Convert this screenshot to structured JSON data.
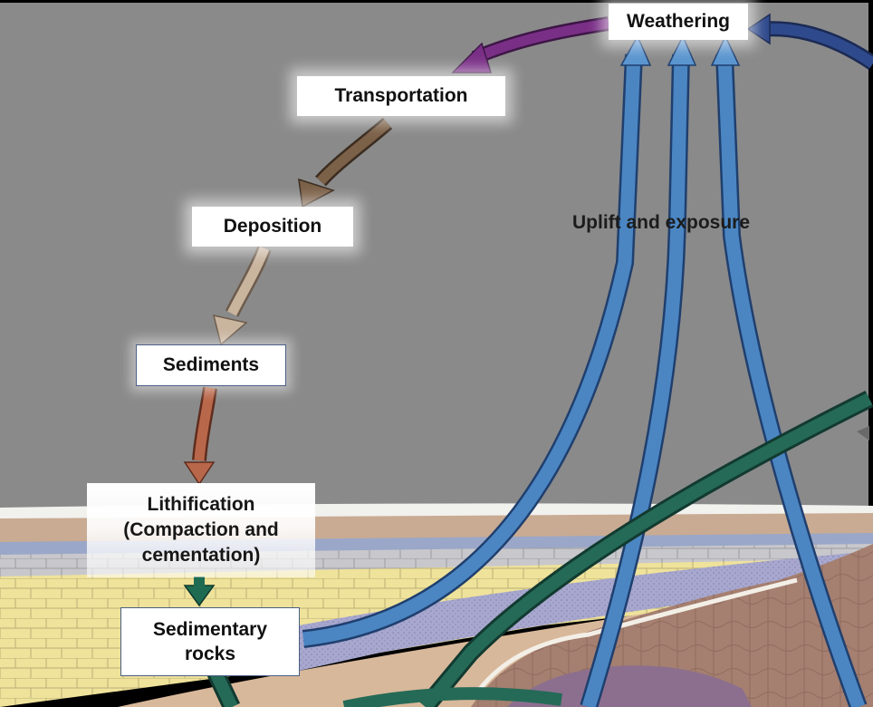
{
  "labels": {
    "weathering": "Weathering",
    "transportation": "Transportation",
    "deposition": "Deposition",
    "sediments": "Sediments",
    "lithification_line1": "Lithification",
    "lithification_line2": "(Compaction and",
    "lithification_line3": "cementation)",
    "sedimentary_line1": "Sedimentary",
    "sedimentary_line2": "rocks",
    "uplift": "Uplift and exposure"
  },
  "colors": {
    "sky": "#8a8a8a",
    "arrow_weathering_to_transport": "#7a2f86",
    "arrow_transport_to_deposition": "#7c6149",
    "arrow_deposition_to_sediments": "#c9b49e",
    "arrow_sediments_to_lithification": "#b9674a",
    "arrow_lithification_to_rocks": "#1f6b52",
    "arrow_uplift": "#3d74b2",
    "arrow_incoming_weathering": "#2a3f7a",
    "arrow_green_diagonal": "#1f5a4a"
  }
}
